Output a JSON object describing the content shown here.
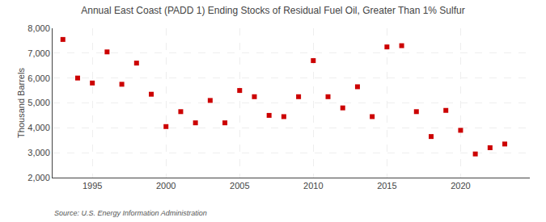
{
  "chart_data": {
    "type": "scatter",
    "title": "Annual East Coast (PADD 1) Ending Stocks of Residual Fuel Oil, Greater Than 1% Sulfur",
    "ylabel": "Thousand Barrels",
    "source": "Source: U.S. Energy Information Administration",
    "x": [
      1993,
      1994,
      1995,
      1996,
      1997,
      1998,
      1999,
      2000,
      2001,
      2002,
      2003,
      2004,
      2005,
      2006,
      2007,
      2008,
      2009,
      2010,
      2011,
      2012,
      2013,
      2014,
      2015,
      2016,
      2017,
      2018,
      2019,
      2020,
      2021,
      2022,
      2023
    ],
    "values": [
      7550,
      6000,
      5800,
      7050,
      5750,
      6600,
      5350,
      4050,
      4650,
      4200,
      5100,
      4200,
      5500,
      5250,
      4500,
      4450,
      5250,
      6700,
      5250,
      4800,
      5650,
      4450,
      7250,
      7300,
      4650,
      3650,
      4700,
      3900,
      2950,
      3200,
      3350
    ],
    "color": "#cc0000",
    "marker": "square",
    "xlim": [
      1992.3,
      2024.7
    ],
    "xticks": [
      1995,
      2000,
      2005,
      2010,
      2015,
      2020
    ],
    "ylim": [
      2000,
      8000
    ],
    "yticks": [
      {
        "value": 2000,
        "label": "2,000"
      },
      {
        "value": 3000,
        "label": "3,000"
      },
      {
        "value": 4000,
        "label": "4,000"
      },
      {
        "value": 5000,
        "label": "5,000"
      },
      {
        "value": 6000,
        "label": "6,000"
      },
      {
        "value": 7000,
        "label": "7,000"
      },
      {
        "value": 8000,
        "label": "8,000"
      }
    ],
    "grid": true
  }
}
